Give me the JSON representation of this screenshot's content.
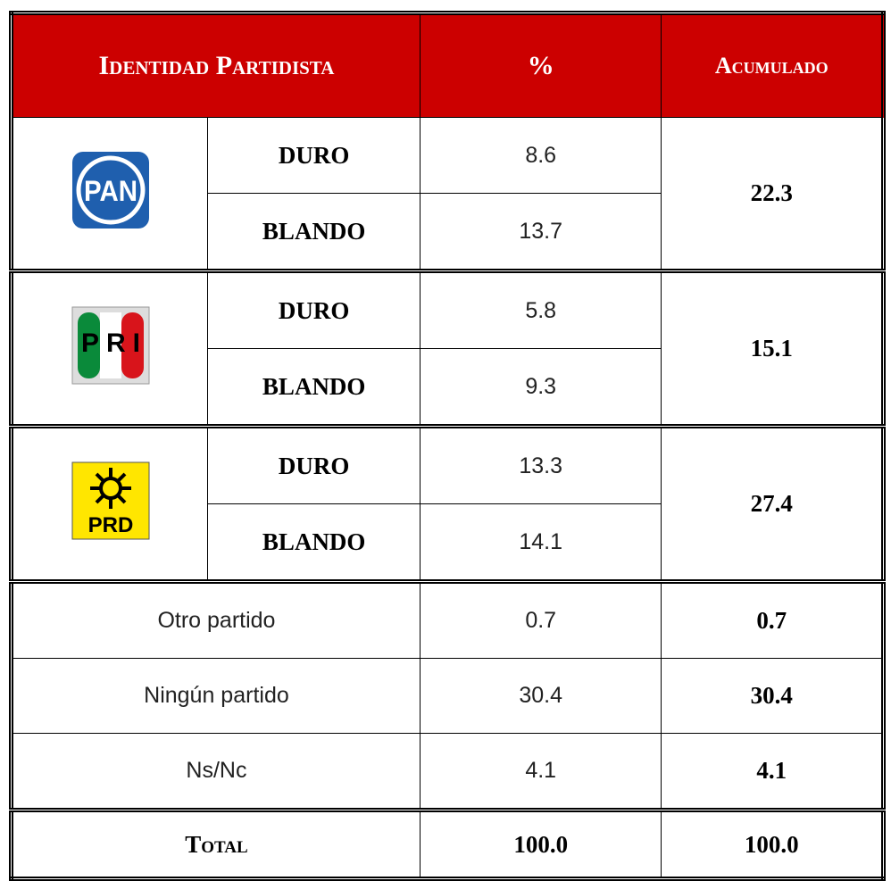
{
  "header": {
    "identidad": "Identidad Partidista",
    "pct": "%",
    "acumulado": "Acumulado"
  },
  "parties": [
    {
      "logo": "PAN",
      "rows": [
        {
          "label": "DURO",
          "pct": "8.6"
        },
        {
          "label": "BLANDO",
          "pct": "13.7"
        }
      ],
      "acumulado": "22.3"
    },
    {
      "logo": "PRI",
      "rows": [
        {
          "label": "DURO",
          "pct": "5.8"
        },
        {
          "label": "BLANDO",
          "pct": "9.3"
        }
      ],
      "acumulado": "15.1"
    },
    {
      "logo": "PRD",
      "rows": [
        {
          "label": "DURO",
          "pct": "13.3"
        },
        {
          "label": "BLANDO",
          "pct": "14.1"
        }
      ],
      "acumulado": "27.4"
    }
  ],
  "others": [
    {
      "label": "Otro partido",
      "pct": "0.7",
      "acumulado": "0.7"
    },
    {
      "label": "Ningún partido",
      "pct": "30.4",
      "acumulado": "30.4"
    },
    {
      "label": "Ns/Nc",
      "pct": "4.1",
      "acumulado": "4.1"
    }
  ],
  "total": {
    "label": "Total",
    "pct": "100.0",
    "acumulado": "100.0"
  }
}
